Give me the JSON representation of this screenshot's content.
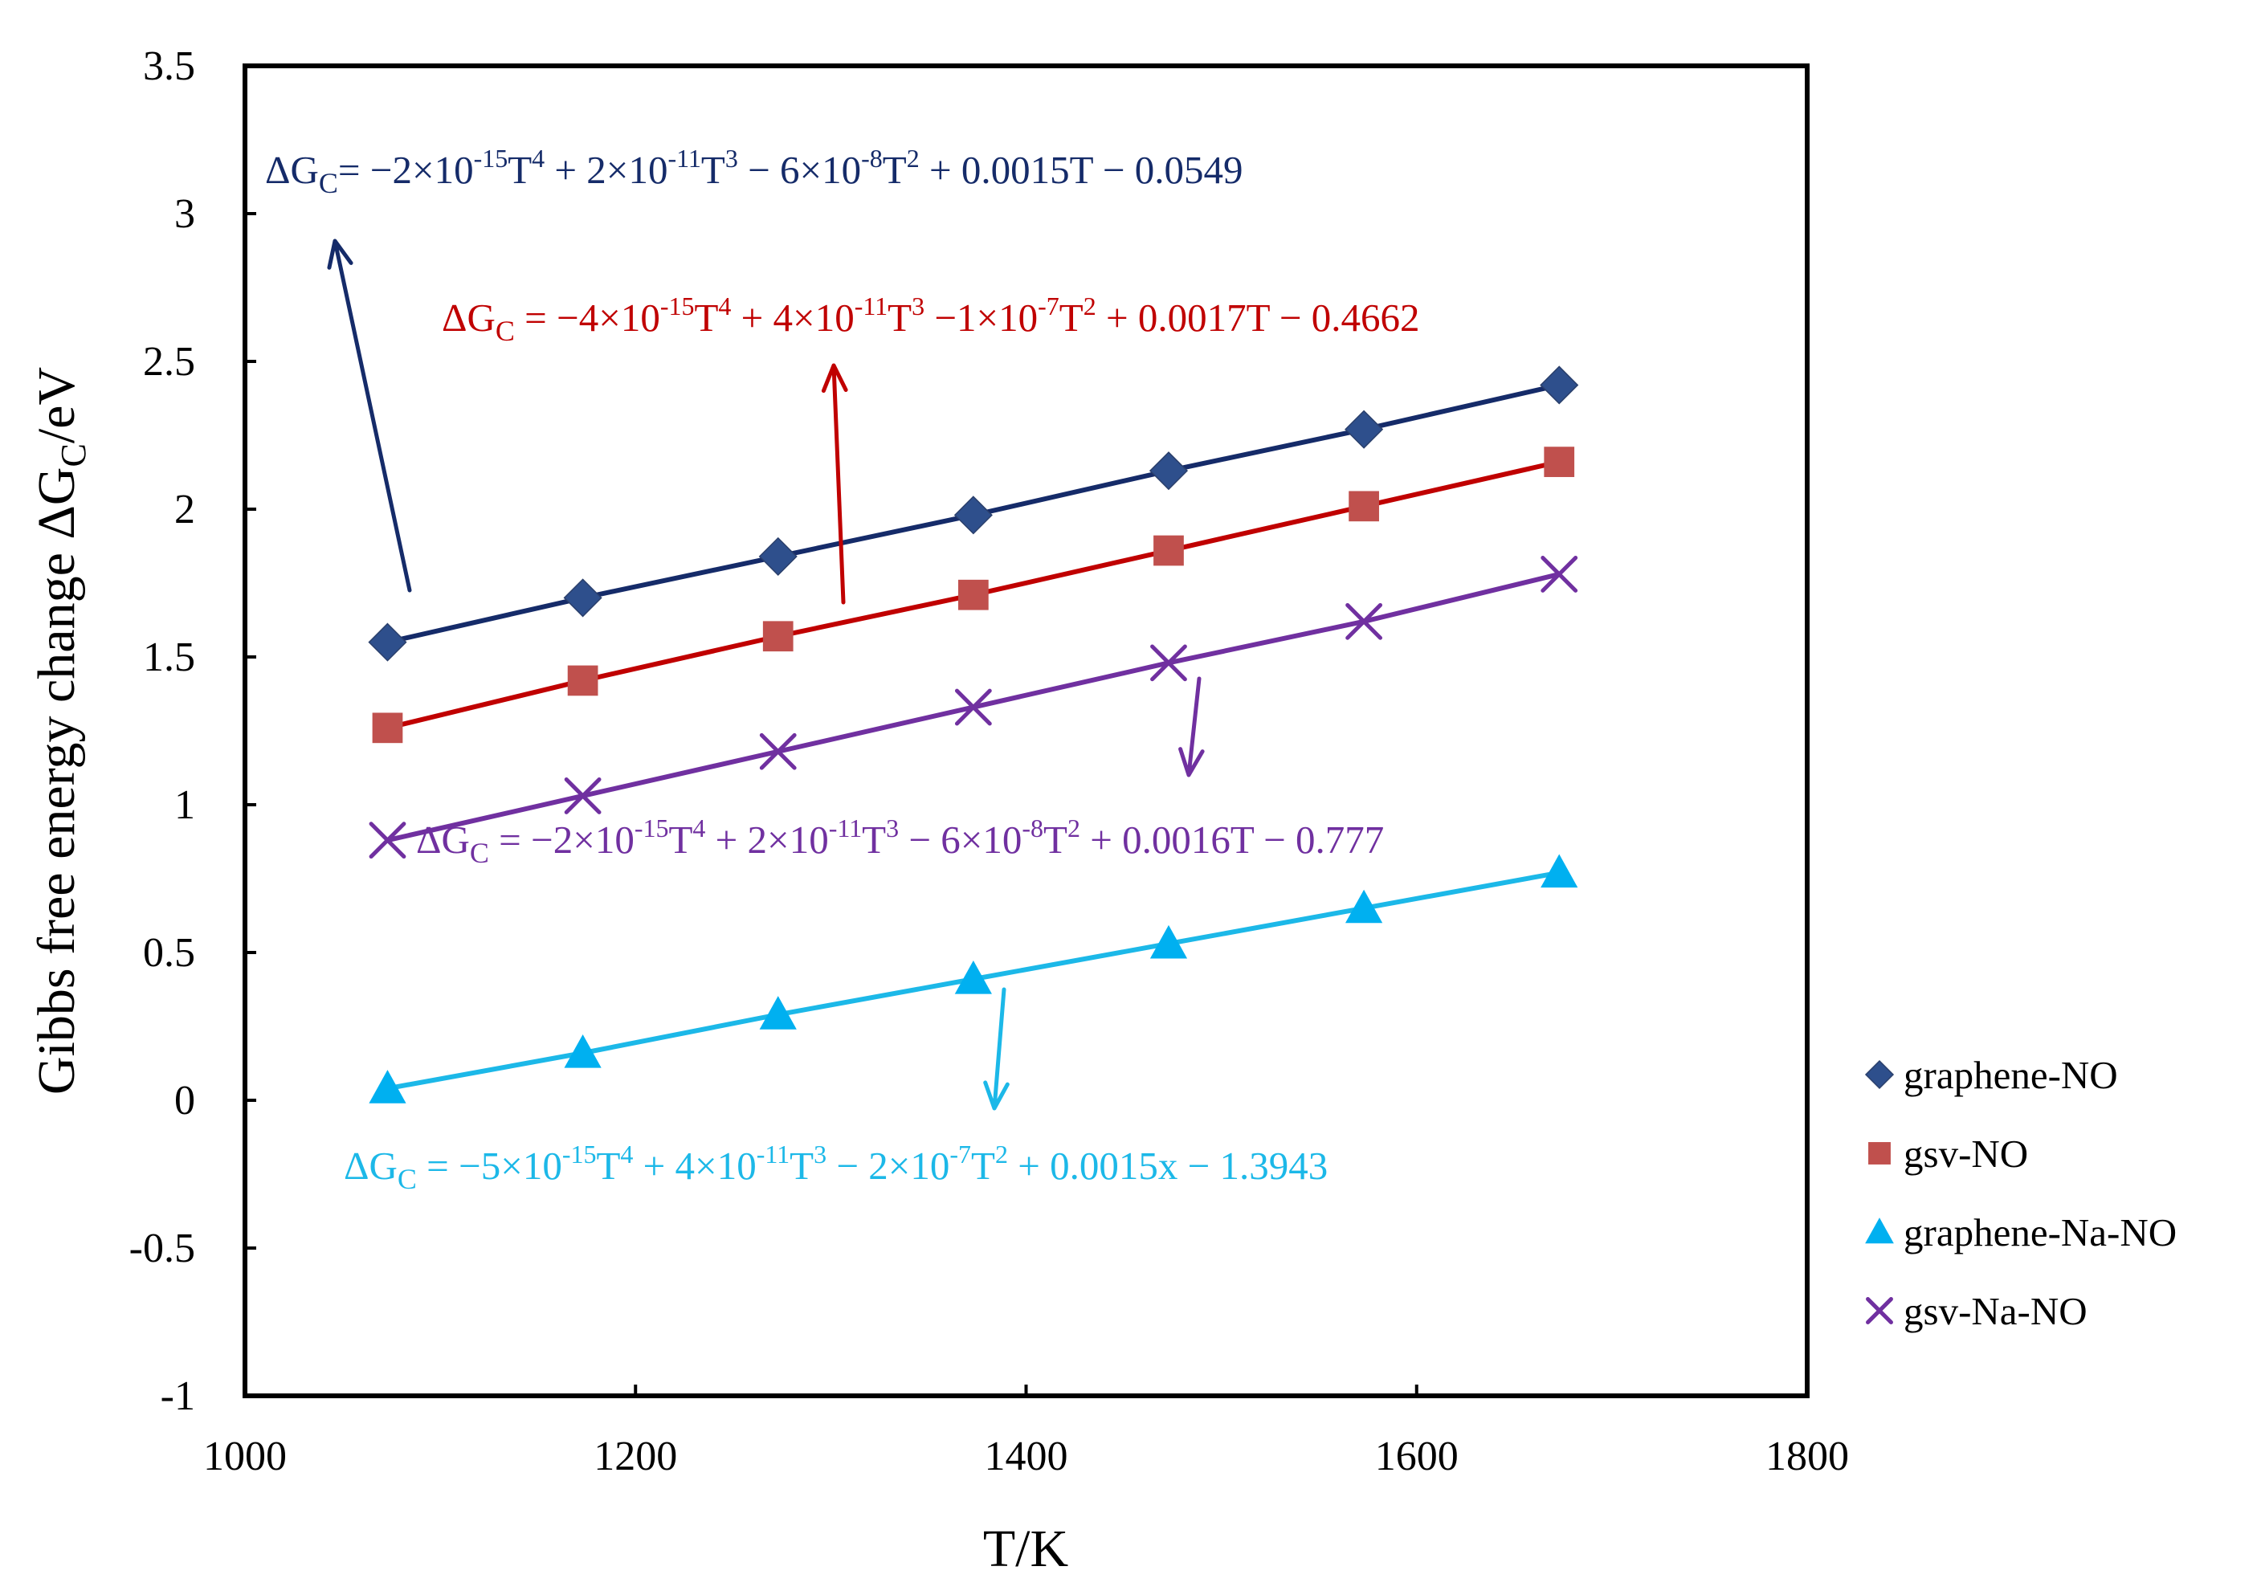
{
  "chart_data": {
    "type": "line",
    "title": "",
    "xlabel": "T/K",
    "ylabel_prefix": "Gibbs free energy change ΔG",
    "ylabel_sub": "C",
    "ylabel_suffix": "/eV",
    "xlim": [
      1000,
      1800
    ],
    "ylim": [
      -1,
      3.5
    ],
    "x_ticks": [
      1000,
      1200,
      1400,
      1600,
      1800
    ],
    "x_tick_labels": [
      "1000",
      "1200",
      "1400",
      "1600",
      "1800"
    ],
    "y_ticks": [
      -1,
      -0.5,
      0,
      0.5,
      1,
      1.5,
      2,
      2.5,
      3,
      3.5
    ],
    "y_tick_labels": [
      "-1",
      "-0.5",
      "0",
      "0.5",
      "1",
      "1.5",
      "2",
      "2.5",
      "3",
      "3.5"
    ],
    "grid": false,
    "legend_position": "right",
    "x": [
      1073,
      1173,
      1273,
      1373,
      1473,
      1573,
      1673
    ],
    "series": [
      {
        "name": "graphene-NO",
        "marker": "diamond",
        "marker_color": "#2E4F8C",
        "line_color": "#152B69",
        "values": [
          1.55,
          1.7,
          1.84,
          1.98,
          2.13,
          2.27,
          2.42
        ]
      },
      {
        "name": "gsv-NO",
        "marker": "square",
        "marker_color": "#C0504D",
        "line_color": "#C00000",
        "values": [
          1.26,
          1.42,
          1.57,
          1.71,
          1.86,
          2.01,
          2.16
        ]
      },
      {
        "name": "graphene-Na-NO",
        "marker": "triangle",
        "marker_color": "#00B0F0",
        "line_color": "#1CB8E8",
        "values": [
          0.04,
          0.16,
          0.29,
          0.41,
          0.53,
          0.65,
          0.77
        ]
      },
      {
        "name": "gsv-Na-NO",
        "marker": "x",
        "marker_color": "#7030A0",
        "line_color": "#7030A0",
        "values": [
          0.88,
          1.03,
          1.18,
          1.33,
          1.48,
          1.62,
          1.78
        ]
      }
    ],
    "annotations": [
      {
        "series": "graphene-NO",
        "color": "#152B69",
        "parts": [
          {
            "t": "ΔG"
          },
          {
            "t": "C",
            "s": "sub"
          },
          {
            "t": "= −2×10"
          },
          {
            "t": "-15",
            "s": "sup"
          },
          {
            "t": "T"
          },
          {
            "t": "4",
            "s": "sup"
          },
          {
            "t": " + 2×10"
          },
          {
            "t": "-11",
            "s": "sup"
          },
          {
            "t": "T"
          },
          {
            "t": "3",
            "s": "sup"
          },
          {
            "t": " − 6×10"
          },
          {
            "t": "-8",
            "s": "sup"
          },
          {
            "t": "T"
          },
          {
            "t": "2",
            "s": "sup"
          },
          {
            "t": " + 0.0015T  − 0.0549"
          }
        ]
      },
      {
        "series": "gsv-NO",
        "color": "#C00000",
        "parts": [
          {
            "t": "ΔG"
          },
          {
            "t": "C",
            "s": "sub"
          },
          {
            "t": " = −4×10"
          },
          {
            "t": "-15",
            "s": "sup"
          },
          {
            "t": "T"
          },
          {
            "t": "4",
            "s": "sup"
          },
          {
            "t": " + 4×10"
          },
          {
            "t": "-11",
            "s": "sup"
          },
          {
            "t": "T"
          },
          {
            "t": "3",
            "s": "sup"
          },
          {
            "t": " −1×10"
          },
          {
            "t": "-7",
            "s": "sup"
          },
          {
            "t": "T"
          },
          {
            "t": "2",
            "s": "sup"
          },
          {
            "t": " + 0.0017T  − 0.4662"
          }
        ]
      },
      {
        "series": "gsv-Na-NO",
        "color": "#7030A0",
        "parts": [
          {
            "t": "ΔG"
          },
          {
            "t": "C",
            "s": "sub"
          },
          {
            "t": " = −2×10"
          },
          {
            "t": "-15",
            "s": "sup"
          },
          {
            "t": "T"
          },
          {
            "t": "4",
            "s": "sup"
          },
          {
            "t": " + 2×10"
          },
          {
            "t": "-11",
            "s": "sup"
          },
          {
            "t": "T"
          },
          {
            "t": "3",
            "s": "sup"
          },
          {
            "t": " − 6×10"
          },
          {
            "t": "-8",
            "s": "sup"
          },
          {
            "t": "T"
          },
          {
            "t": "2",
            "s": "sup"
          },
          {
            "t": " + 0.0016T  − 0.777"
          }
        ]
      },
      {
        "series": "graphene-Na-NO",
        "color": "#1CB8E8",
        "parts": [
          {
            "t": "ΔG"
          },
          {
            "t": "C",
            "s": "sub"
          },
          {
            "t": " = −5×10"
          },
          {
            "t": "-15",
            "s": "sup"
          },
          {
            "t": "T"
          },
          {
            "t": "4",
            "s": "sup"
          },
          {
            "t": " + 4×10"
          },
          {
            "t": "-11",
            "s": "sup"
          },
          {
            "t": "T"
          },
          {
            "t": "3",
            "s": "sup"
          },
          {
            "t": " − 2×10"
          },
          {
            "t": "-7",
            "s": "sup"
          },
          {
            "t": "T"
          },
          {
            "t": "2",
            "s": "sup"
          },
          {
            "t": " + 0.0015x − 1.3943"
          }
        ]
      }
    ]
  }
}
